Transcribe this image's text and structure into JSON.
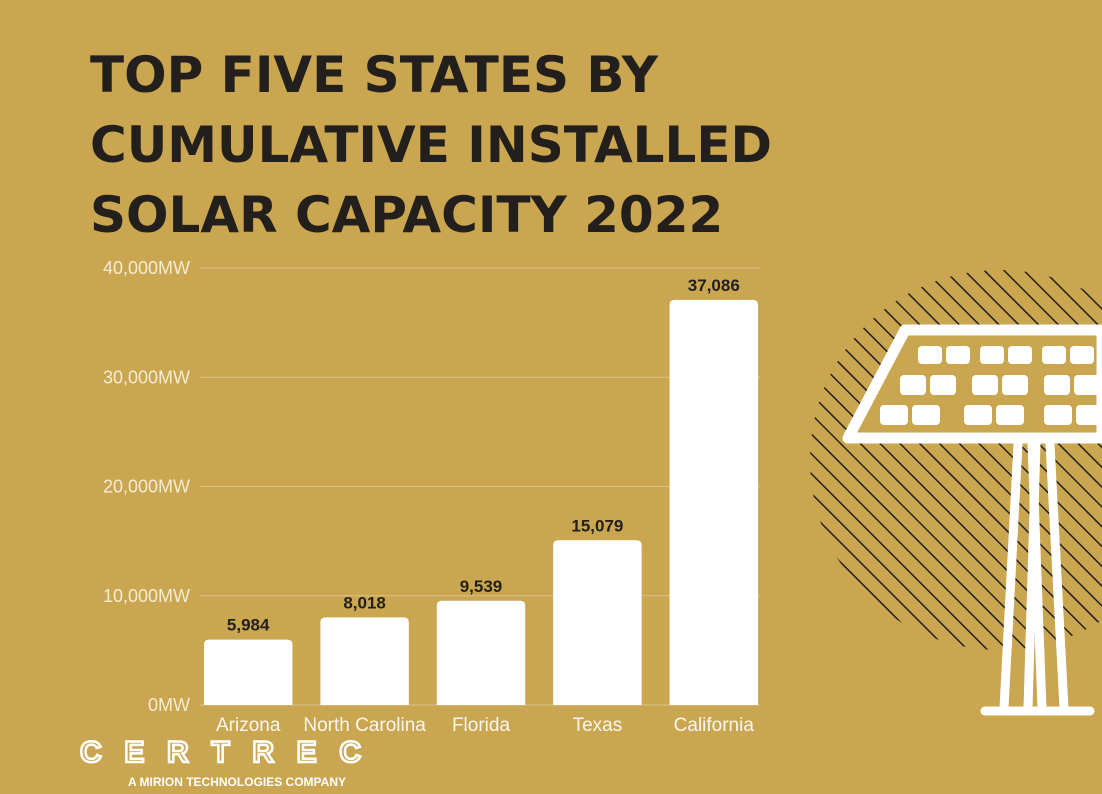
{
  "chart_data": {
    "type": "bar",
    "title": [
      "TOP FIVE STATES BY",
      "CUMULATIVE INSTALLED",
      "SOLAR CAPACITY 2022"
    ],
    "categories": [
      "Arizona",
      "North Carolina",
      "Florida",
      "Texas",
      "California"
    ],
    "values": [
      5984,
      8018,
      9539,
      15079,
      37086
    ],
    "value_labels": [
      "5,984",
      "8,018",
      "9,539",
      "15,079",
      "37,086"
    ],
    "color": "#ffffff",
    "ylim": [
      0,
      40000
    ],
    "yticks": [
      {
        "value": 0,
        "label": "0MW"
      },
      {
        "value": 10000,
        "label": "10,000MW"
      },
      {
        "value": 20000,
        "label": "20,000MW"
      },
      {
        "value": 30000,
        "label": "30,000MW"
      },
      {
        "value": 40000,
        "label": "40,000MW"
      }
    ],
    "grid": true
  },
  "brand": {
    "name": "CERTREC",
    "tagline": "A MIRION TECHNOLOGIES COMPANY"
  }
}
